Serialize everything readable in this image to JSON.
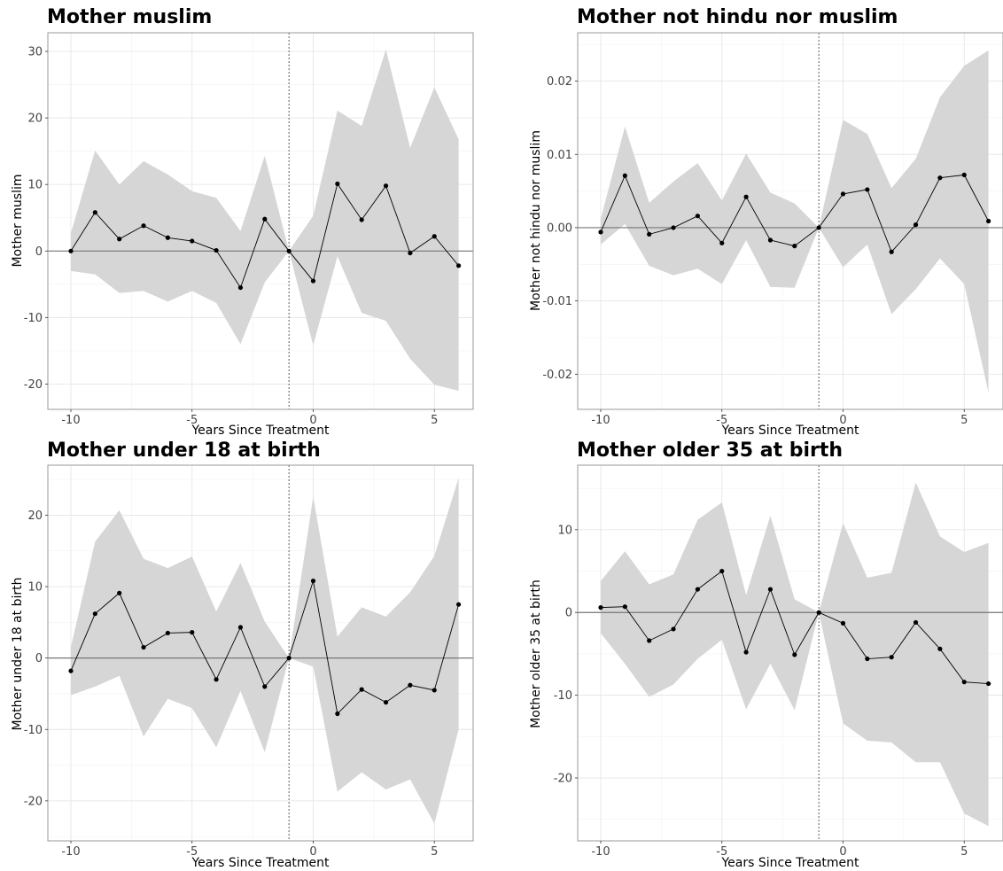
{
  "chart_data": [
    {
      "type": "line",
      "title": "Mother muslim",
      "xlabel": "Years Since Treatment",
      "ylabel": "Mother muslim",
      "x": [
        -10,
        -9,
        -8,
        -7,
        -6,
        -5,
        -4,
        -3,
        -2,
        -1,
        0,
        1,
        2,
        3,
        4,
        5,
        6
      ],
      "y": [
        0,
        5.8,
        1.8,
        3.8,
        2.0,
        1.5,
        0.1,
        -5.5,
        4.8,
        0,
        -4.5,
        10.1,
        4.7,
        9.8,
        -0.3,
        2.2,
        -2.2
      ],
      "lower": [
        -3.0,
        -3.5,
        -6.3,
        -6.0,
        -7.6,
        -6.0,
        -7.8,
        -14.0,
        -4.7,
        0,
        -14.2,
        -0.8,
        -9.3,
        -10.5,
        -16.2,
        -20.1,
        -21.0
      ],
      "upper": [
        2.7,
        15.1,
        10.0,
        13.5,
        11.5,
        9.0,
        8.0,
        3.0,
        14.3,
        0,
        5.3,
        21.1,
        18.8,
        30.3,
        15.5,
        24.6,
        16.8
      ],
      "xlim": [
        -10.95,
        6.6
      ],
      "ylim": [
        -23.8,
        32.8
      ],
      "xticks": [
        -10,
        -5,
        0,
        5
      ],
      "xtick_labels": [
        "-10",
        "-5",
        "0",
        "5"
      ],
      "yticks": [
        -20,
        -10,
        0,
        10,
        20,
        30
      ],
      "ytick_labels": [
        "-20",
        "-10",
        "0",
        "10",
        "20",
        "30"
      ],
      "vline": -1,
      "hline": 0,
      "grid": true
    },
    {
      "type": "line",
      "title": "Mother not hindu nor muslim",
      "xlabel": "Years Since Treatment",
      "ylabel": "Mother not hindu nor muslim",
      "x": [
        -10,
        -9,
        -8,
        -7,
        -6,
        -5,
        -4,
        -3,
        -2,
        -1,
        0,
        1,
        2,
        3,
        4,
        5,
        6
      ],
      "y": [
        -0.0006,
        0.0071,
        -0.0009,
        0.0,
        0.0016,
        -0.0021,
        0.0042,
        -0.0017,
        -0.0025,
        0,
        0.0046,
        0.0052,
        -0.0033,
        0.0004,
        0.0068,
        0.0072,
        0.0009
      ],
      "lower": [
        -0.0023,
        0.0005,
        -0.0052,
        -0.0065,
        -0.0056,
        -0.0077,
        -0.0017,
        -0.0081,
        -0.0082,
        0,
        -0.0054,
        -0.0023,
        -0.0118,
        -0.0084,
        -0.0042,
        -0.0077,
        -0.0225
      ],
      "upper": [
        0.0012,
        0.0138,
        0.0034,
        0.0063,
        0.0088,
        0.0037,
        0.0101,
        0.0048,
        0.0033,
        0,
        0.0147,
        0.0128,
        0.0054,
        0.0094,
        0.0178,
        0.0221,
        0.0242
      ],
      "xlim": [
        -10.95,
        6.6
      ],
      "ylim": [
        -0.0248,
        0.0266
      ],
      "xticks": [
        -10,
        -5,
        0,
        5
      ],
      "xtick_labels": [
        "-10",
        "-5",
        "0",
        "5"
      ],
      "yticks": [
        -0.02,
        -0.01,
        0.0,
        0.01,
        0.02
      ],
      "ytick_labels": [
        "-0.02",
        "-0.01",
        "0.00",
        "0.01",
        "0.02"
      ],
      "vline": -1,
      "hline": 0,
      "grid": true
    },
    {
      "type": "line",
      "title": "Mother under 18 at birth",
      "xlabel": "Years Since Treatment",
      "ylabel": "Mother under 18 at birth",
      "x": [
        -10,
        -9,
        -8,
        -7,
        -6,
        -5,
        -4,
        -3,
        -2,
        -1,
        0,
        1,
        2,
        3,
        4,
        5,
        6
      ],
      "y": [
        -1.8,
        6.2,
        9.1,
        1.5,
        3.5,
        3.6,
        -3.0,
        4.3,
        -4.0,
        0,
        10.8,
        -7.8,
        -4.4,
        -6.2,
        -3.8,
        -4.5,
        7.5
      ],
      "lower": [
        -5.2,
        -4.0,
        -2.5,
        -11.0,
        -5.7,
        -7.0,
        -12.5,
        -4.6,
        -13.2,
        0,
        -1.2,
        -18.7,
        -16.0,
        -18.4,
        -17.0,
        -23.2,
        -10.0
      ],
      "upper": [
        1.5,
        16.3,
        20.7,
        13.9,
        12.6,
        14.2,
        6.5,
        13.3,
        5.1,
        0,
        22.6,
        3.0,
        7.1,
        5.8,
        9.2,
        14.3,
        25.2
      ],
      "xlim": [
        -10.95,
        6.6
      ],
      "ylim": [
        -25.6,
        27.0
      ],
      "xticks": [
        -10,
        -5,
        0,
        5
      ],
      "xtick_labels": [
        "-10",
        "-5",
        "0",
        "5"
      ],
      "yticks": [
        -20,
        -10,
        0,
        10,
        20
      ],
      "ytick_labels": [
        "-20",
        "-10",
        "0",
        "10",
        "20"
      ],
      "vline": -1,
      "hline": 0,
      "grid": true
    },
    {
      "type": "line",
      "title": "Mother older 35 at birth",
      "xlabel": "Years Since Treatment",
      "ylabel": "Mother older 35 at birth",
      "x": [
        -10,
        -9,
        -8,
        -7,
        -6,
        -5,
        -4,
        -3,
        -2,
        -1,
        0,
        1,
        2,
        3,
        4,
        5,
        6
      ],
      "y": [
        0.6,
        0.7,
        -3.4,
        -2.0,
        2.8,
        5.0,
        -4.8,
        2.8,
        -5.1,
        0,
        -1.3,
        -5.6,
        -5.4,
        -1.2,
        -4.4,
        -8.4,
        -8.6
      ],
      "lower": [
        -2.5,
        -6.2,
        -10.2,
        -8.7,
        -5.6,
        -3.3,
        -11.7,
        -6.2,
        -11.8,
        0,
        -13.4,
        -15.5,
        -15.7,
        -18.1,
        -18.1,
        -24.3,
        -25.8
      ],
      "upper": [
        3.8,
        7.4,
        3.4,
        4.6,
        11.2,
        13.3,
        2.1,
        11.7,
        1.6,
        0,
        10.8,
        4.2,
        4.8,
        15.7,
        9.2,
        7.3,
        8.4
      ],
      "xlim": [
        -10.95,
        6.6
      ],
      "ylim": [
        -27.6,
        17.8
      ],
      "xticks": [
        -10,
        -5,
        0,
        5
      ],
      "xtick_labels": [
        "-10",
        "-5",
        "0",
        "5"
      ],
      "yticks": [
        -20,
        -10,
        0,
        10
      ],
      "ytick_labels": [
        "-20",
        "-10",
        "0",
        "10"
      ],
      "vline": -1,
      "hline": 0,
      "grid": true
    }
  ]
}
